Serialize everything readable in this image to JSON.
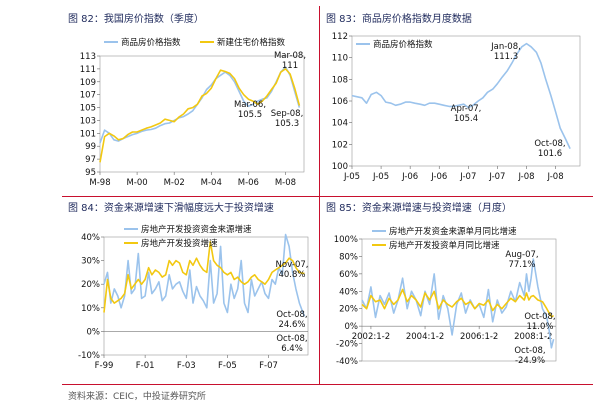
{
  "colors": {
    "blue": "#9bc3ec",
    "yellow": "#f2c811",
    "divider": "#c8102e",
    "title": "#1f2a5c"
  },
  "panels": [
    {
      "title": "图 82：我国房价指数（季度）"
    },
    {
      "title": "图 83：商品房价格指数月度数据"
    },
    {
      "title": "图 84：资金来源增速下滑幅度远大于投资增速"
    },
    {
      "title": "图 85：资金来源增速与投资增速（月度）"
    }
  ],
  "source": "资料来源：CEIC，中投证券研究所",
  "chart_data": [
    {
      "type": "line",
      "ylim": [
        95,
        113
      ],
      "yticks": [
        95,
        97,
        99,
        101,
        103,
        105,
        107,
        109,
        111,
        113
      ],
      "xlim": [
        1998.0,
        2009.0
      ],
      "xticks": [
        {
          "x": 1998.0,
          "label": "M-98"
        },
        {
          "x": 2000.0,
          "label": "M-00"
        },
        {
          "x": 2002.0,
          "label": "M-02"
        },
        {
          "x": 2004.0,
          "label": "M-04"
        },
        {
          "x": 2006.0,
          "label": "M-06"
        },
        {
          "x": 2008.0,
          "label": "M-08"
        }
      ],
      "legend": "top",
      "series": [
        {
          "name": "商品房价格指数",
          "color": "#9bc3ec",
          "x": [
            1998.0,
            1998.25,
            1998.5,
            1998.75,
            1999.0,
            1999.25,
            1999.5,
            1999.75,
            2000.0,
            2000.25,
            2000.5,
            2000.75,
            2001.0,
            2001.25,
            2001.5,
            2001.75,
            2002.0,
            2002.25,
            2002.5,
            2002.75,
            2003.0,
            2003.25,
            2003.5,
            2003.75,
            2004.0,
            2004.25,
            2004.5,
            2004.75,
            2005.0,
            2005.25,
            2005.5,
            2005.75,
            2006.0,
            2006.25,
            2006.5,
            2006.75,
            2007.0,
            2007.25,
            2007.5,
            2007.75,
            2008.0,
            2008.25,
            2008.5,
            2008.75
          ],
          "values": [
            99.5,
            101.5,
            101.0,
            100.0,
            99.8,
            100.2,
            100.5,
            100.8,
            101.0,
            101.3,
            101.5,
            101.6,
            101.8,
            102.2,
            102.5,
            102.6,
            103.0,
            103.4,
            103.6,
            104.0,
            104.5,
            105.5,
            106.5,
            107.8,
            108.5,
            109.5,
            110.0,
            110.5,
            110.0,
            109.0,
            107.5,
            106.0,
            105.2,
            105.5,
            106.0,
            106.3,
            106.5,
            107.5,
            109.0,
            110.5,
            111.3,
            110.0,
            107.5,
            105.0
          ]
        },
        {
          "name": "新建住宅价格指数",
          "color": "#f2c811",
          "x": [
            1998.0,
            1998.25,
            1998.5,
            1998.75,
            1999.0,
            1999.25,
            1999.5,
            1999.75,
            2000.0,
            2000.25,
            2000.5,
            2000.75,
            2001.0,
            2001.25,
            2001.5,
            2001.75,
            2002.0,
            2002.25,
            2002.5,
            2002.75,
            2003.0,
            2003.25,
            2003.5,
            2003.75,
            2004.0,
            2004.25,
            2004.5,
            2004.75,
            2005.0,
            2005.25,
            2005.5,
            2005.75,
            2006.0,
            2006.25,
            2006.5,
            2006.75,
            2007.0,
            2007.25,
            2007.5,
            2007.75,
            2008.0,
            2008.25,
            2008.5,
            2008.75
          ],
          "values": [
            96.5,
            100.5,
            101.0,
            100.6,
            100.0,
            100.2,
            100.8,
            101.2,
            101.2,
            101.5,
            101.8,
            102.0,
            102.3,
            102.6,
            103.2,
            103.0,
            102.8,
            103.5,
            104.0,
            104.8,
            105.0,
            105.5,
            106.8,
            107.2,
            108.0,
            109.5,
            110.8,
            110.6,
            110.3,
            109.5,
            108.0,
            107.0,
            106.3,
            106.0,
            105.5,
            106.0,
            106.8,
            107.8,
            108.8,
            110.5,
            111.0,
            110.2,
            108.0,
            105.3
          ]
        }
      ],
      "annotations": [
        {
          "label": "Mar-08",
          "value": "111"
        },
        {
          "label": "Mar-06",
          "value": "105.5"
        },
        {
          "label": "Sep-08",
          "value": "105.3"
        }
      ]
    },
    {
      "type": "line",
      "ylim": [
        100,
        112
      ],
      "yticks": [
        100,
        102,
        104,
        106,
        108,
        110,
        112
      ],
      "xlim": [
        2005.0,
        2008.92
      ],
      "xticks": [
        {
          "x": 2005.0,
          "label": "J-05"
        },
        {
          "x": 2005.5,
          "label": "J-05"
        },
        {
          "x": 2006.0,
          "label": "J-06"
        },
        {
          "x": 2006.5,
          "label": "J-06"
        },
        {
          "x": 2007.0,
          "label": "J-07"
        },
        {
          "x": 2007.5,
          "label": "J-07"
        },
        {
          "x": 2008.0,
          "label": "J-08"
        },
        {
          "x": 2008.5,
          "label": "J-08"
        }
      ],
      "legend": "top",
      "series": [
        {
          "name": "商品房价格指数",
          "color": "#9bc3ec",
          "x": [
            2005.0,
            2005.08,
            2005.17,
            2005.25,
            2005.33,
            2005.42,
            2005.5,
            2005.58,
            2005.67,
            2005.75,
            2005.83,
            2005.92,
            2006.0,
            2006.08,
            2006.17,
            2006.25,
            2006.33,
            2006.42,
            2006.5,
            2006.58,
            2006.67,
            2006.75,
            2006.83,
            2006.92,
            2007.0,
            2007.08,
            2007.17,
            2007.25,
            2007.33,
            2007.42,
            2007.5,
            2007.58,
            2007.67,
            2007.75,
            2007.83,
            2007.92,
            2008.0,
            2008.08,
            2008.17,
            2008.25,
            2008.33,
            2008.42,
            2008.5,
            2008.58,
            2008.67,
            2008.75
          ],
          "values": [
            106.5,
            106.4,
            106.3,
            105.8,
            106.6,
            106.8,
            106.5,
            105.9,
            105.8,
            105.6,
            105.7,
            105.9,
            105.9,
            105.8,
            105.7,
            105.6,
            105.8,
            105.8,
            105.7,
            105.6,
            105.5,
            105.5,
            105.6,
            105.7,
            105.4,
            105.6,
            106.0,
            106.3,
            106.8,
            107.1,
            107.6,
            108.2,
            108.8,
            109.5,
            110.3,
            111.0,
            111.3,
            111.0,
            110.5,
            109.5,
            108.0,
            106.5,
            105.0,
            103.5,
            102.5,
            101.6
          ]
        }
      ],
      "annotations": [
        {
          "label": "Jan-08",
          "value": "111.3"
        },
        {
          "label": "Apr-07",
          "value": "105.4"
        },
        {
          "label": "Oct-08",
          "value": "101.6"
        }
      ]
    },
    {
      "type": "line",
      "ylim": [
        -10,
        40
      ],
      "yticks": [
        "-10%",
        "0%",
        "10%",
        "20%",
        "30%",
        "40%"
      ],
      "xlim": [
        1999.0,
        2008.92
      ],
      "xticks": [
        {
          "x": 1999.0,
          "label": "F-99"
        },
        {
          "x": 2001.0,
          "label": "F-01"
        },
        {
          "x": 2003.0,
          "label": "F-03"
        },
        {
          "x": 2005.0,
          "label": "F-05"
        },
        {
          "x": 2007.0,
          "label": "F-07"
        }
      ],
      "legend": "top",
      "series": [
        {
          "name": "房地产开发投资资金来源增速",
          "color": "#9bc3ec",
          "x": [
            1999.0,
            1999.17,
            1999.33,
            1999.5,
            1999.67,
            1999.83,
            2000.0,
            2000.17,
            2000.33,
            2000.5,
            2000.67,
            2000.83,
            2001.0,
            2001.17,
            2001.33,
            2001.5,
            2001.67,
            2001.83,
            2002.0,
            2002.17,
            2002.33,
            2002.5,
            2002.67,
            2002.83,
            2003.0,
            2003.17,
            2003.33,
            2003.5,
            2003.67,
            2003.83,
            2004.0,
            2004.17,
            2004.33,
            2004.5,
            2004.67,
            2004.83,
            2005.0,
            2005.17,
            2005.33,
            2005.5,
            2005.67,
            2005.83,
            2006.0,
            2006.17,
            2006.33,
            2006.5,
            2006.67,
            2006.83,
            2007.0,
            2007.17,
            2007.33,
            2007.5,
            2007.67,
            2007.83,
            2008.0,
            2008.17,
            2008.33,
            2008.5,
            2008.67,
            2008.75
          ],
          "values": [
            20,
            25,
            12,
            18,
            15,
            10,
            15,
            30,
            16,
            18,
            33,
            14,
            15,
            25,
            16,
            18,
            21,
            13,
            15,
            24,
            18,
            20,
            21,
            17,
            14,
            26,
            12,
            19,
            15,
            13,
            10,
            30,
            12,
            16,
            36,
            12,
            8,
            20,
            14,
            18,
            30,
            12,
            8,
            22,
            15,
            18,
            21,
            16,
            14,
            22,
            20,
            27,
            24,
            41,
            36,
            25,
            18,
            12,
            8,
            6.4
          ]
        },
        {
          "name": "房地产开发投资增速",
          "color": "#f2c811",
          "x": [
            1999.0,
            1999.17,
            1999.33,
            1999.5,
            1999.67,
            1999.83,
            2000.0,
            2000.17,
            2000.33,
            2000.5,
            2000.67,
            2000.83,
            2001.0,
            2001.17,
            2001.33,
            2001.5,
            2001.67,
            2001.83,
            2002.0,
            2002.17,
            2002.33,
            2002.5,
            2002.67,
            2002.83,
            2003.0,
            2003.17,
            2003.33,
            2003.5,
            2003.67,
            2003.83,
            2004.0,
            2004.17,
            2004.33,
            2004.5,
            2004.67,
            2004.83,
            2005.0,
            2005.17,
            2005.33,
            2005.5,
            2005.67,
            2005.83,
            2006.0,
            2006.17,
            2006.33,
            2006.5,
            2006.67,
            2006.83,
            2007.0,
            2007.17,
            2007.33,
            2007.5,
            2007.67,
            2007.83,
            2008.0,
            2008.17,
            2008.33,
            2008.5,
            2008.67,
            2008.75
          ],
          "values": [
            8,
            22,
            14,
            12,
            13,
            14,
            16,
            24,
            18,
            20,
            22,
            20,
            22,
            27,
            24,
            26,
            25,
            23,
            24,
            30,
            28,
            30,
            29,
            25,
            24,
            30,
            28,
            31,
            28,
            26,
            25,
            38,
            30,
            28,
            27,
            25,
            24,
            25,
            22,
            23,
            21,
            20,
            21,
            23,
            24,
            22,
            21,
            20,
            22,
            25,
            26,
            27,
            28,
            29,
            31,
            30,
            27,
            25,
            24.6,
            24.6
          ]
        }
      ],
      "annotations": [
        {
          "label": "Nov-07",
          "value": "40.8%"
        },
        {
          "label": "Oct-08",
          "value": "24.6%"
        },
        {
          "label": "Oct-08",
          "value": "6.4%"
        }
      ]
    },
    {
      "type": "line",
      "ylim": [
        -40,
        100
      ],
      "yticks": [
        "-40%",
        "-20%",
        "0%",
        "20%",
        "40%",
        "60%",
        "80%",
        "100%"
      ],
      "xlim": [
        2001.75,
        2008.92
      ],
      "xticks": [
        {
          "x": 2002.08,
          "label": "2002:1-2"
        },
        {
          "x": 2004.08,
          "label": "2004:1-2"
        },
        {
          "x": 2006.08,
          "label": "2006:1-2"
        },
        {
          "x": 2008.08,
          "label": "2008:1-2"
        }
      ],
      "legend": "top",
      "series": [
        {
          "name": "房地产开发资金来源单月同比增速",
          "color": "#9bc3ec",
          "x": [
            2001.75,
            2001.92,
            2002.08,
            2002.25,
            2002.42,
            2002.58,
            2002.75,
            2002.92,
            2003.08,
            2003.25,
            2003.42,
            2003.58,
            2003.75,
            2003.92,
            2004.08,
            2004.25,
            2004.42,
            2004.58,
            2004.75,
            2004.92,
            2005.08,
            2005.25,
            2005.42,
            2005.58,
            2005.75,
            2005.92,
            2006.08,
            2006.25,
            2006.42,
            2006.58,
            2006.75,
            2006.92,
            2007.08,
            2007.25,
            2007.42,
            2007.58,
            2007.75,
            2007.83,
            2007.92,
            2008.0,
            2008.08,
            2008.25,
            2008.42,
            2008.58,
            2008.67,
            2008.75,
            2008.83
          ],
          "values": [
            30,
            20,
            45,
            10,
            35,
            25,
            38,
            15,
            30,
            55,
            20,
            40,
            30,
            12,
            40,
            25,
            60,
            8,
            35,
            20,
            -10,
            25,
            38,
            15,
            30,
            20,
            25,
            10,
            42,
            5,
            30,
            15,
            22,
            40,
            28,
            50,
            35,
            60,
            40,
            55,
            77.1,
            45,
            20,
            10,
            -5,
            -24.9,
            -15
          ]
        },
        {
          "name": "房地产开发投资单月同比增速",
          "color": "#f2c811",
          "x": [
            2001.75,
            2001.92,
            2002.08,
            2002.25,
            2002.42,
            2002.58,
            2002.75,
            2002.92,
            2003.08,
            2003.25,
            2003.42,
            2003.58,
            2003.75,
            2003.92,
            2004.08,
            2004.25,
            2004.42,
            2004.58,
            2004.75,
            2004.92,
            2005.08,
            2005.25,
            2005.42,
            2005.58,
            2005.75,
            2005.92,
            2006.08,
            2006.25,
            2006.42,
            2006.58,
            2006.75,
            2006.92,
            2007.08,
            2007.25,
            2007.42,
            2007.58,
            2007.75,
            2007.83,
            2007.92,
            2008.0,
            2008.08,
            2008.25,
            2008.42,
            2008.58,
            2008.67,
            2008.75,
            2008.83
          ],
          "values": [
            25,
            20,
            35,
            28,
            30,
            20,
            32,
            25,
            30,
            42,
            28,
            35,
            30,
            22,
            38,
            30,
            40,
            20,
            30,
            25,
            22,
            28,
            32,
            25,
            28,
            20,
            26,
            24,
            30,
            18,
            25,
            20,
            26,
            32,
            28,
            35,
            30,
            38,
            30,
            34,
            35,
            30,
            28,
            20,
            15,
            11.0,
            12
          ]
        }
      ],
      "annotations": [
        {
          "label": "Aug-07",
          "value": "77.1%"
        },
        {
          "label": "Oct-08",
          "value": "11.0%"
        },
        {
          "label": "Oct-08",
          "value": "-24.9%"
        }
      ]
    }
  ]
}
